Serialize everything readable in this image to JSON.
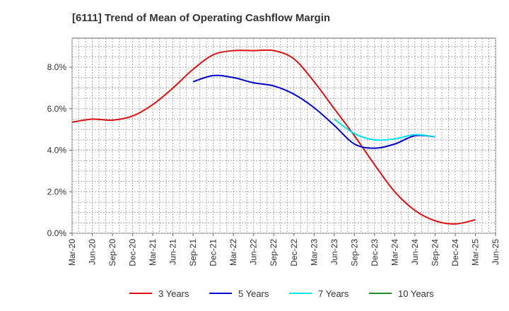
{
  "chart_data": {
    "type": "line",
    "title": "[6111]  Trend of Mean of Operating Cashflow Margin",
    "xlabel": "",
    "ylabel": "",
    "ylim": [
      0,
      9.4
    ],
    "yticks": [
      0,
      2,
      4,
      6,
      8
    ],
    "ytick_labels": [
      "0.0%",
      "2.0%",
      "4.0%",
      "6.0%",
      "8.0%"
    ],
    "x_tick_labels": [
      "Mar-20",
      "Jun-20",
      "Sep-20",
      "Dec-20",
      "Mar-21",
      "Jun-21",
      "Sep-21",
      "Dec-21",
      "Mar-22",
      "Jun-22",
      "Sep-22",
      "Dec-22",
      "Mar-23",
      "Jun-23",
      "Sep-23",
      "Dec-23",
      "Mar-24",
      "Jun-24",
      "Sep-24",
      "Dec-24",
      "Mar-25",
      "Jun-25"
    ],
    "grid": true,
    "legend_position": "bottom",
    "series": [
      {
        "name": "3 Years",
        "color": "#dd1111",
        "start_index": 0,
        "values": [
          5.35,
          5.5,
          5.45,
          5.65,
          6.2,
          7.0,
          7.9,
          8.6,
          8.8,
          8.8,
          8.8,
          8.4,
          7.3,
          6.0,
          4.7,
          3.3,
          2.0,
          1.1,
          0.6,
          0.45,
          0.65
        ]
      },
      {
        "name": "5 Years",
        "color": "#0000cc",
        "start_index": 6,
        "values": [
          7.3,
          7.6,
          7.5,
          7.25,
          7.1,
          6.7,
          6.05,
          5.2,
          4.3,
          4.1,
          4.3,
          4.7,
          4.65
        ]
      },
      {
        "name": "7 Years",
        "color": "#00e5ee",
        "start_index": 13,
        "values": [
          5.5,
          4.8,
          4.5,
          4.55,
          4.75,
          4.65
        ]
      },
      {
        "name": "10 Years",
        "color": "#228b22",
        "start_index": 0,
        "values": []
      }
    ]
  }
}
